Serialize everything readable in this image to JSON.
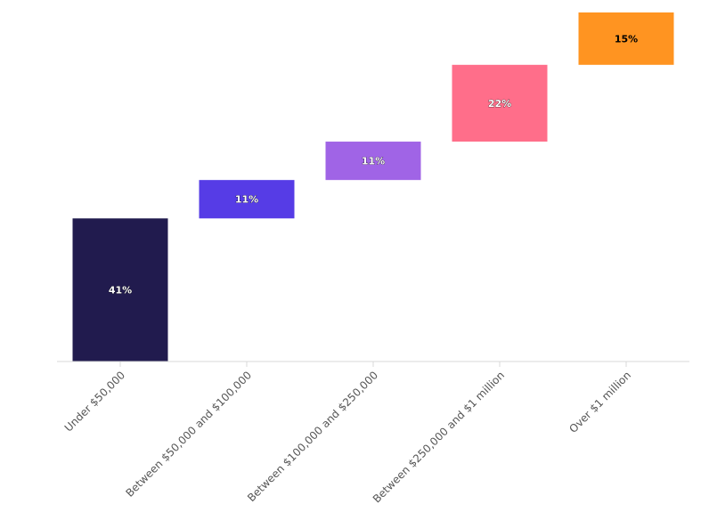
{
  "chart_data": {
    "type": "bar",
    "subtype": "waterfall",
    "title": "",
    "xlabel": "",
    "ylabel": "",
    "categories": [
      "Under $50,000",
      "Between $50,000 and $100,000",
      "Between $100,000 and $250,000",
      "Between $250,000 and $1 million",
      "Over $1 million"
    ],
    "values": [
      41,
      11,
      11,
      22,
      15
    ],
    "value_labels": [
      "41%",
      "11%",
      "11%",
      "22%",
      "15%"
    ],
    "unit": "%",
    "ylim": [
      0,
      100
    ],
    "grid": false,
    "legend": "none",
    "colors": [
      "#211b4e",
      "#563ce6",
      "#a064e6",
      "#ff6e8a",
      "#ff9421"
    ],
    "label_colors": [
      "#ffffff",
      "#ffffff",
      "#ffffff",
      "#ffffff",
      "#000000"
    ],
    "axis_color": "#d9d9d9"
  }
}
